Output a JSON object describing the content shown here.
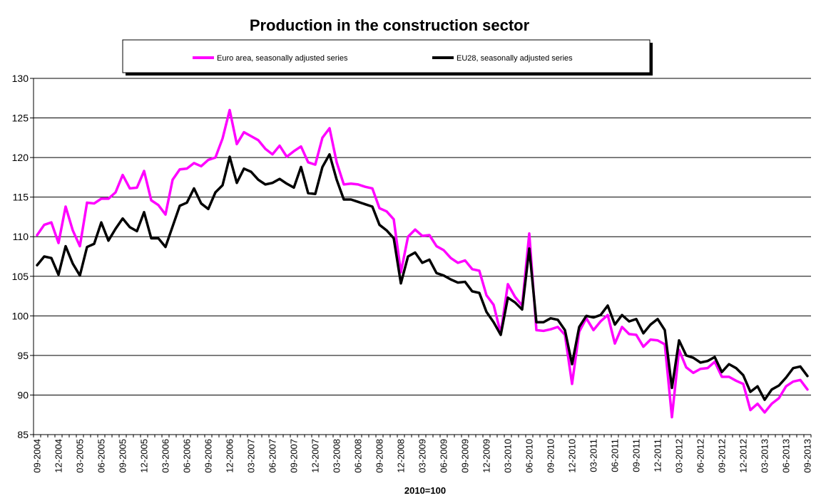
{
  "chart_data": {
    "type": "line",
    "title": "Production in the construction sector",
    "xlabel": "2010=100",
    "ylabel": "",
    "ylim": [
      85,
      130
    ],
    "yticks": [
      85,
      90,
      95,
      100,
      105,
      110,
      115,
      120,
      125,
      130
    ],
    "grid": true,
    "legend_position": "top",
    "x_tick_labels": [
      "09-2004",
      "12-2004",
      "03-2005",
      "06-2005",
      "09-2005",
      "12-2005",
      "03-2006",
      "06-2006",
      "09-2006",
      "12-2006",
      "03-2007",
      "06-2007",
      "09-2007",
      "12-2007",
      "03-2008",
      "06-2008",
      "09-2008",
      "12-2008",
      "03-2009",
      "06-2009",
      "09-2009",
      "12-2009",
      "03-2010",
      "06-2010",
      "09-2010",
      "12-2010",
      "03-2011",
      "06-2011",
      "09-2011",
      "12-2011",
      "03-2012",
      "06-2012",
      "09-2012",
      "12-2012",
      "03-2013",
      "06-2013",
      "09-2013"
    ],
    "series": [
      {
        "name": "Euro area, seasonally adjusted series",
        "color": "#ff00ff",
        "values": [
          110.2,
          111.5,
          111.8,
          109.2,
          113.8,
          110.8,
          108.8,
          114.3,
          114.2,
          114.8,
          114.8,
          115.6,
          117.8,
          116.1,
          116.2,
          118.3,
          114.6,
          114.0,
          112.8,
          117.2,
          118.5,
          118.6,
          119.3,
          118.9,
          119.7,
          120.0,
          122.4,
          126.0,
          121.7,
          123.2,
          122.7,
          122.2,
          121.1,
          120.4,
          121.5,
          120.1,
          120.8,
          121.4,
          119.4,
          119.1,
          122.5,
          123.7,
          119.4,
          116.6,
          116.7,
          116.6,
          116.3,
          116.1,
          113.6,
          113.2,
          112.2,
          105.5,
          110.0,
          110.9,
          110.1,
          110.2,
          108.8,
          108.3,
          107.3,
          106.7,
          107.0,
          105.9,
          105.7,
          102.6,
          101.4,
          97.8,
          104.0,
          102.4,
          101.3,
          110.4,
          98.2,
          98.1,
          98.3,
          98.6,
          97.6,
          91.4,
          98.0,
          99.7,
          98.2,
          99.3,
          100.1,
          96.5,
          98.6,
          97.7,
          97.6,
          96.1,
          97.0,
          96.9,
          96.4,
          87.2,
          95.7,
          93.5,
          92.8,
          93.3,
          93.4,
          94.2,
          92.3,
          92.3,
          91.8,
          91.4,
          88.1,
          88.9,
          87.8,
          88.9,
          89.6,
          91.1,
          91.7,
          91.9,
          90.7
        ]
      },
      {
        "name": "EU28, seasonally adjusted series",
        "color": "#000000",
        "values": [
          106.4,
          107.5,
          107.3,
          105.2,
          108.8,
          106.6,
          105.1,
          108.7,
          109.1,
          111.8,
          109.5,
          111.0,
          112.3,
          111.2,
          110.7,
          113.1,
          109.8,
          109.8,
          108.7,
          111.3,
          113.9,
          114.3,
          116.1,
          114.2,
          113.5,
          115.6,
          116.5,
          120.1,
          116.8,
          118.6,
          118.2,
          117.2,
          116.6,
          116.8,
          117.3,
          116.7,
          116.2,
          118.8,
          115.5,
          115.4,
          118.8,
          120.4,
          117.2,
          114.7,
          114.7,
          114.4,
          114.1,
          113.8,
          111.5,
          110.8,
          109.8,
          104.1,
          107.5,
          108.0,
          106.7,
          107.1,
          105.4,
          105.1,
          104.6,
          104.2,
          104.3,
          103.1,
          102.9,
          100.5,
          99.2,
          97.6,
          102.3,
          101.7,
          100.8,
          108.5,
          99.2,
          99.2,
          99.7,
          99.5,
          98.2,
          93.9,
          98.6,
          100.0,
          99.8,
          100.1,
          101.3,
          98.9,
          100.1,
          99.3,
          99.6,
          97.8,
          98.9,
          99.6,
          98.2,
          90.9,
          96.9,
          95.0,
          94.7,
          94.1,
          94.3,
          94.8,
          92.9,
          93.9,
          93.4,
          92.5,
          90.4,
          91.1,
          89.4,
          90.7,
          91.2,
          92.2,
          93.4,
          93.6,
          92.4
        ]
      }
    ]
  }
}
